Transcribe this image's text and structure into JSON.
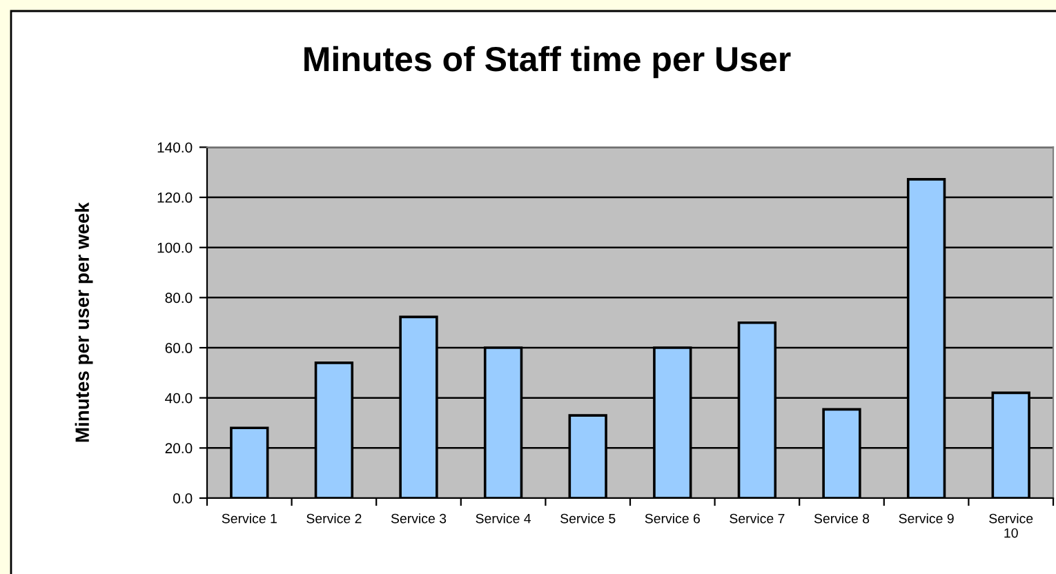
{
  "chart_data": {
    "type": "bar",
    "title": "Minutes of Staff time per User",
    "ylabel": "Minutes per user per week",
    "categories": [
      "Service 1",
      "Service 2",
      "Service 3",
      "Service 4",
      "Service 5",
      "Service 6",
      "Service 7",
      "Service 8",
      "Service 9",
      "Service 10"
    ],
    "values": [
      28,
      54,
      72.3,
      60,
      33,
      60,
      70,
      35.4,
      127.2,
      42
    ],
    "color": "#99ccff",
    "ylim": [
      0,
      140
    ],
    "yticks": [
      {
        "value": 0,
        "label": "0.0"
      },
      {
        "value": 20,
        "label": "20.0"
      },
      {
        "value": 40,
        "label": "40.0"
      },
      {
        "value": 60,
        "label": "60.0"
      },
      {
        "value": 80,
        "label": "80.0"
      },
      {
        "value": 100,
        "label": "100.0"
      },
      {
        "value": 120,
        "label": "120.0"
      },
      {
        "value": 140,
        "label": "140.0"
      }
    ],
    "grid": "y",
    "legend": false
  }
}
